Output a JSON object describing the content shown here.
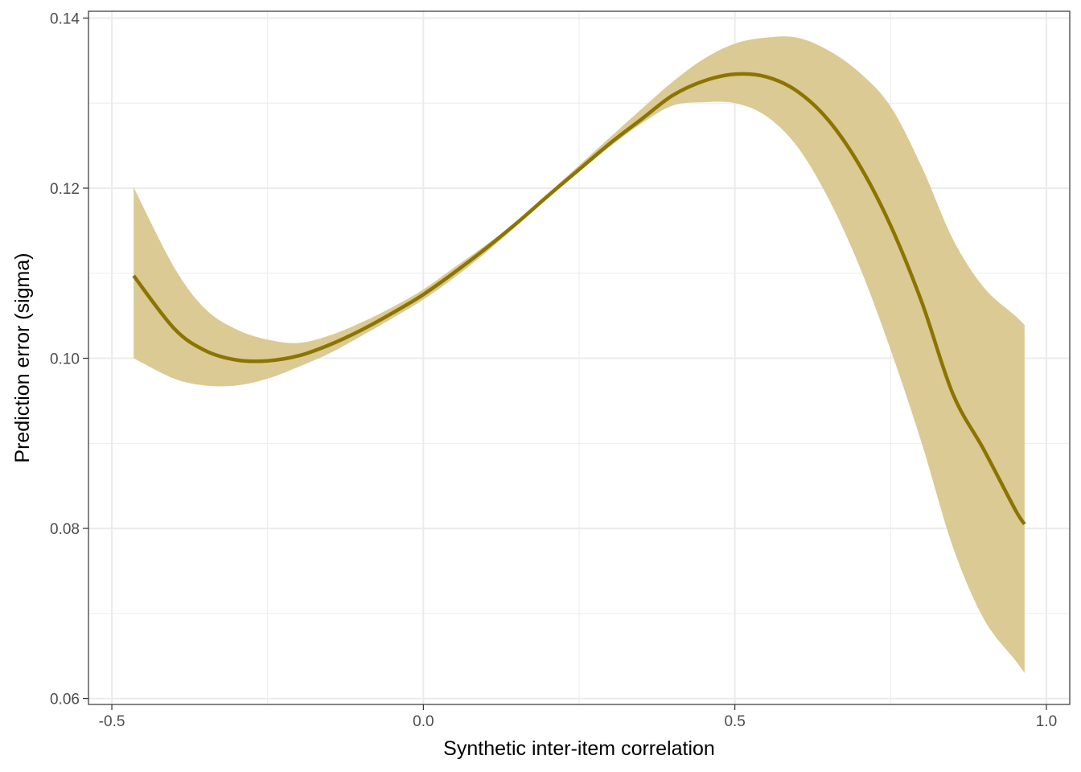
{
  "chart_data": {
    "type": "line",
    "title": "",
    "xlabel": "Synthetic inter-item correlation",
    "ylabel": "Prediction error (sigma)",
    "xlim": [
      -0.5375,
      1.0375
    ],
    "ylim": [
      0.0593,
      0.1408
    ],
    "x_ticks": [
      -0.5,
      0.0,
      0.5,
      1.0
    ],
    "x_tick_labels": [
      "-0.5",
      "0.0",
      "0.5",
      "1.0"
    ],
    "y_ticks": [
      0.06,
      0.08,
      0.1,
      0.12,
      0.14
    ],
    "y_tick_labels": [
      "0.06",
      "0.08",
      "0.10",
      "0.12",
      "0.14"
    ],
    "x_minor_ticks": [
      -0.25,
      0.25,
      0.75
    ],
    "y_minor_ticks": [
      0.07,
      0.09,
      0.11,
      0.13
    ],
    "grid": true,
    "legend": "none",
    "colors": {
      "line": "#8c7400",
      "band": "#dbca94",
      "grid": "#ebebeb",
      "border": "#333333"
    },
    "series": [
      {
        "x": [
          -0.465,
          -0.4,
          -0.35,
          -0.3,
          -0.25,
          -0.2,
          -0.15,
          -0.1,
          -0.05,
          0.0,
          0.05,
          0.1,
          0.15,
          0.2,
          0.25,
          0.3,
          0.35,
          0.4,
          0.45,
          0.5,
          0.55,
          0.6,
          0.65,
          0.7,
          0.75,
          0.8,
          0.85,
          0.9,
          0.95,
          0.965
        ],
        "y": [
          0.1097,
          0.1035,
          0.1009,
          0.0998,
          0.0997,
          0.1003,
          0.1016,
          0.1033,
          0.1053,
          0.1075,
          0.1101,
          0.1129,
          0.1159,
          0.1191,
          0.1222,
          0.1253,
          0.1281,
          0.1309,
          0.1326,
          0.1334,
          0.1331,
          0.1314,
          0.128,
          0.1227,
          0.1156,
          0.1066,
          0.0958,
          0.0892,
          0.0822,
          0.0805
        ],
        "lower": [
          0.1,
          0.0976,
          0.0968,
          0.0968,
          0.0976,
          0.099,
          0.1006,
          0.1026,
          0.1047,
          0.1069,
          0.1095,
          0.1124,
          0.1156,
          0.1188,
          0.1219,
          0.1249,
          0.1276,
          0.1297,
          0.1301,
          0.13,
          0.1285,
          0.1249,
          0.1188,
          0.1108,
          0.101,
          0.09,
          0.0778,
          0.0693,
          0.0645,
          0.063
        ],
        "upper": [
          0.1201,
          0.1107,
          0.1058,
          0.1034,
          0.1022,
          0.1018,
          0.1027,
          0.1042,
          0.106,
          0.1081,
          0.1107,
          0.1133,
          0.1161,
          0.1194,
          0.1227,
          0.126,
          0.1293,
          0.1325,
          0.1352,
          0.137,
          0.1377,
          0.1377,
          0.1362,
          0.1336,
          0.1296,
          0.1225,
          0.114,
          0.1083,
          0.105,
          0.1039
        ]
      }
    ]
  }
}
